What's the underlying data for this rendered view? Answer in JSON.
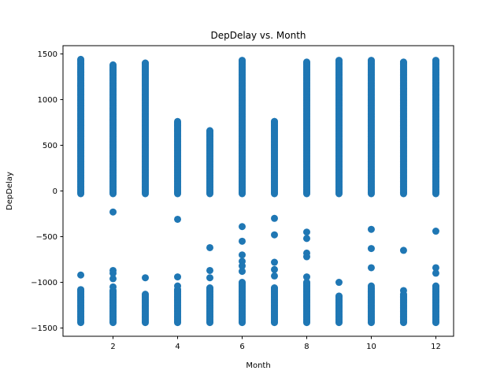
{
  "chart_data": {
    "type": "scatter",
    "title": "DepDelay vs. Month",
    "xlabel": "Month",
    "ylabel": "DepDelay",
    "xlim": [
      0.45,
      12.55
    ],
    "ylim": [
      -1590,
      1590
    ],
    "xticks": [
      2,
      4,
      6,
      8,
      10,
      12
    ],
    "yticks": [
      -1500,
      -1000,
      -500,
      0,
      500,
      1000,
      1500
    ],
    "grid": false,
    "marker_color": "#1f77b4",
    "series": [
      {
        "x": [
          1,
          2,
          3,
          4,
          5,
          6,
          7,
          8,
          9,
          10,
          11,
          12
        ],
        "dense_ranges": [
          [
            [
              -1440,
              -1080
            ],
            [
              -30,
              1440
            ]
          ],
          [
            [
              -1440,
              -1090
            ],
            [
              -30,
              1380
            ]
          ],
          [
            [
              -1440,
              -1130
            ],
            [
              -30,
              1400
            ]
          ],
          [
            [
              -1440,
              -1080
            ],
            [
              -30,
              760
            ]
          ],
          [
            [
              -1440,
              -1060
            ],
            [
              -30,
              660
            ]
          ],
          [
            [
              -1440,
              -1000
            ],
            [
              -30,
              1430
            ]
          ],
          [
            [
              -1440,
              -1060
            ],
            [
              -30,
              760
            ]
          ],
          [
            [
              -1440,
              -1000
            ],
            [
              -30,
              1410
            ]
          ],
          [
            [
              -1440,
              -1150
            ],
            [
              -30,
              1430
            ]
          ],
          [
            [
              -1440,
              -1060
            ],
            [
              -30,
              1430
            ]
          ],
          [
            [
              -1440,
              -1130
            ],
            [
              -30,
              1410
            ]
          ],
          [
            [
              -1440,
              -1040
            ],
            [
              -30,
              1430
            ]
          ]
        ],
        "outliers": [
          [
            1,
            -920
          ],
          [
            1,
            1300
          ],
          [
            1,
            1150
          ],
          [
            2,
            -230
          ],
          [
            2,
            -870
          ],
          [
            2,
            -900
          ],
          [
            2,
            -960
          ],
          [
            2,
            -1050
          ],
          [
            2,
            1320
          ],
          [
            2,
            990
          ],
          [
            2,
            900
          ],
          [
            2,
            780
          ],
          [
            3,
            -950
          ],
          [
            3,
            1310
          ],
          [
            3,
            1200
          ],
          [
            3,
            1000
          ],
          [
            4,
            -310
          ],
          [
            4,
            -940
          ],
          [
            4,
            -1040
          ],
          [
            4,
            720
          ],
          [
            4,
            660
          ],
          [
            5,
            -620
          ],
          [
            5,
            -870
          ],
          [
            5,
            -950
          ],
          [
            5,
            610
          ],
          [
            6,
            -390
          ],
          [
            6,
            -550
          ],
          [
            6,
            -700
          ],
          [
            6,
            -770
          ],
          [
            6,
            -820
          ],
          [
            6,
            -880
          ],
          [
            7,
            -300
          ],
          [
            7,
            -480
          ],
          [
            7,
            -780
          ],
          [
            7,
            -860
          ],
          [
            7,
            -930
          ],
          [
            7,
            760
          ],
          [
            8,
            -450
          ],
          [
            8,
            -520
          ],
          [
            8,
            -680
          ],
          [
            8,
            -720
          ],
          [
            8,
            -940
          ],
          [
            9,
            -1000
          ],
          [
            9,
            1200
          ],
          [
            10,
            -420
          ],
          [
            10,
            -630
          ],
          [
            10,
            -840
          ],
          [
            10,
            -1040
          ],
          [
            11,
            -650
          ],
          [
            11,
            -1090
          ],
          [
            11,
            1120
          ],
          [
            12,
            -440
          ],
          [
            12,
            -840
          ],
          [
            12,
            -900
          ],
          [
            12,
            1180
          ],
          [
            12,
            1050
          ]
        ]
      }
    ]
  }
}
